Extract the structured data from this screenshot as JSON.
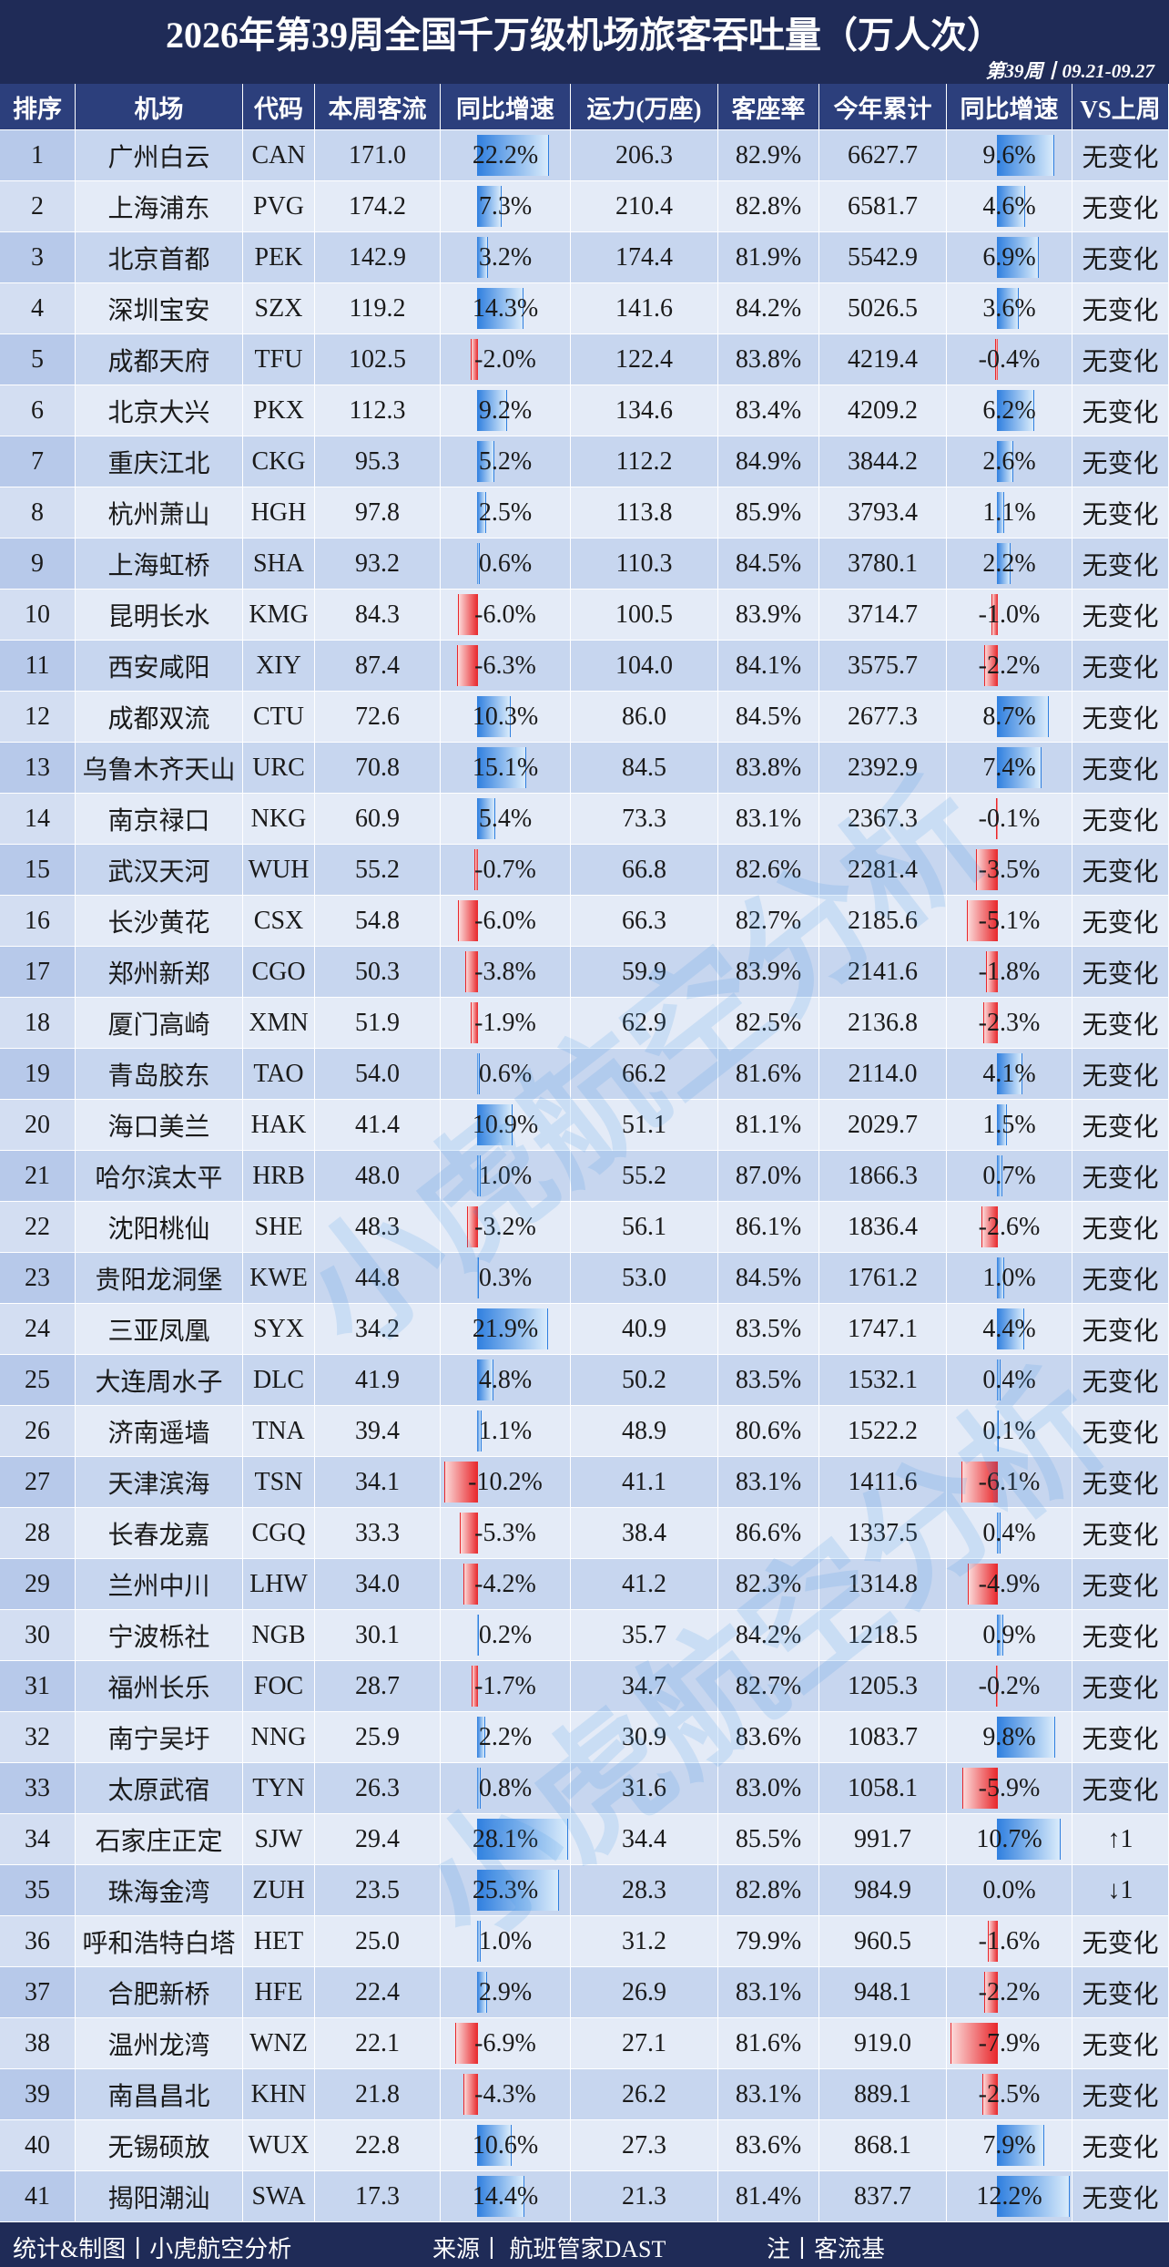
{
  "header": {
    "title": "2026年第39周全国千万级机场旅客吞吐量（万人次）",
    "subtitle": "第39周丨09.21-09.27"
  },
  "table": {
    "columns": [
      "排序",
      "机场",
      "代码",
      "本周客流",
      "同比增速",
      "运力(万座)",
      "客座率",
      "今年累计",
      "同比增速",
      "VS上周"
    ],
    "rows": [
      [
        "1",
        "广州白云",
        "CAN",
        "171.0",
        "22.2%",
        "206.3",
        "82.9%",
        "6627.7",
        "9.6%",
        "无变化"
      ],
      [
        "2",
        "上海浦东",
        "PVG",
        "174.2",
        "7.3%",
        "210.4",
        "82.8%",
        "6581.7",
        "4.6%",
        "无变化"
      ],
      [
        "3",
        "北京首都",
        "PEK",
        "142.9",
        "3.2%",
        "174.4",
        "81.9%",
        "5542.9",
        "6.9%",
        "无变化"
      ],
      [
        "4",
        "深圳宝安",
        "SZX",
        "119.2",
        "14.3%",
        "141.6",
        "84.2%",
        "5026.5",
        "3.6%",
        "无变化"
      ],
      [
        "5",
        "成都天府",
        "TFU",
        "102.5",
        "-2.0%",
        "122.4",
        "83.8%",
        "4219.4",
        "-0.4%",
        "无变化"
      ],
      [
        "6",
        "北京大兴",
        "PKX",
        "112.3",
        "9.2%",
        "134.6",
        "83.4%",
        "4209.2",
        "6.2%",
        "无变化"
      ],
      [
        "7",
        "重庆江北",
        "CKG",
        "95.3",
        "5.2%",
        "112.2",
        "84.9%",
        "3844.2",
        "2.6%",
        "无变化"
      ],
      [
        "8",
        "杭州萧山",
        "HGH",
        "97.8",
        "2.5%",
        "113.8",
        "85.9%",
        "3793.4",
        "1.1%",
        "无变化"
      ],
      [
        "9",
        "上海虹桥",
        "SHA",
        "93.2",
        "0.6%",
        "110.3",
        "84.5%",
        "3780.1",
        "2.2%",
        "无变化"
      ],
      [
        "10",
        "昆明长水",
        "KMG",
        "84.3",
        "-6.0%",
        "100.5",
        "83.9%",
        "3714.7",
        "-1.0%",
        "无变化"
      ],
      [
        "11",
        "西安咸阳",
        "XIY",
        "87.4",
        "-6.3%",
        "104.0",
        "84.1%",
        "3575.7",
        "-2.2%",
        "无变化"
      ],
      [
        "12",
        "成都双流",
        "CTU",
        "72.6",
        "10.3%",
        "86.0",
        "84.5%",
        "2677.3",
        "8.7%",
        "无变化"
      ],
      [
        "13",
        "乌鲁木齐天山",
        "URC",
        "70.8",
        "15.1%",
        "84.5",
        "83.8%",
        "2392.9",
        "7.4%",
        "无变化"
      ],
      [
        "14",
        "南京禄口",
        "NKG",
        "60.9",
        "5.4%",
        "73.3",
        "83.1%",
        "2367.3",
        "-0.1%",
        "无变化"
      ],
      [
        "15",
        "武汉天河",
        "WUH",
        "55.2",
        "-0.7%",
        "66.8",
        "82.6%",
        "2281.4",
        "-3.5%",
        "无变化"
      ],
      [
        "16",
        "长沙黄花",
        "CSX",
        "54.8",
        "-6.0%",
        "66.3",
        "82.7%",
        "2185.6",
        "-5.1%",
        "无变化"
      ],
      [
        "17",
        "郑州新郑",
        "CGO",
        "50.3",
        "-3.8%",
        "59.9",
        "83.9%",
        "2141.6",
        "-1.8%",
        "无变化"
      ],
      [
        "18",
        "厦门高崎",
        "XMN",
        "51.9",
        "-1.9%",
        "62.9",
        "82.5%",
        "2136.8",
        "-2.3%",
        "无变化"
      ],
      [
        "19",
        "青岛胶东",
        "TAO",
        "54.0",
        "0.6%",
        "66.2",
        "81.6%",
        "2114.0",
        "4.1%",
        "无变化"
      ],
      [
        "20",
        "海口美兰",
        "HAK",
        "41.4",
        "10.9%",
        "51.1",
        "81.1%",
        "2029.7",
        "1.5%",
        "无变化"
      ],
      [
        "21",
        "哈尔滨太平",
        "HRB",
        "48.0",
        "1.0%",
        "55.2",
        "87.0%",
        "1866.3",
        "0.7%",
        "无变化"
      ],
      [
        "22",
        "沈阳桃仙",
        "SHE",
        "48.3",
        "-3.2%",
        "56.1",
        "86.1%",
        "1836.4",
        "-2.6%",
        "无变化"
      ],
      [
        "23",
        "贵阳龙洞堡",
        "KWE",
        "44.8",
        "0.3%",
        "53.0",
        "84.5%",
        "1761.2",
        "1.0%",
        "无变化"
      ],
      [
        "24",
        "三亚凤凰",
        "SYX",
        "34.2",
        "21.9%",
        "40.9",
        "83.5%",
        "1747.1",
        "4.4%",
        "无变化"
      ],
      [
        "25",
        "大连周水子",
        "DLC",
        "41.9",
        "4.8%",
        "50.2",
        "83.5%",
        "1532.1",
        "0.4%",
        "无变化"
      ],
      [
        "26",
        "济南遥墙",
        "TNA",
        "39.4",
        "1.1%",
        "48.9",
        "80.6%",
        "1522.2",
        "0.1%",
        "无变化"
      ],
      [
        "27",
        "天津滨海",
        "TSN",
        "34.1",
        "-10.2%",
        "41.1",
        "83.1%",
        "1411.6",
        "-6.1%",
        "无变化"
      ],
      [
        "28",
        "长春龙嘉",
        "CGQ",
        "33.3",
        "-5.3%",
        "38.4",
        "86.6%",
        "1337.5",
        "0.4%",
        "无变化"
      ],
      [
        "29",
        "兰州中川",
        "LHW",
        "34.0",
        "-4.2%",
        "41.2",
        "82.3%",
        "1314.8",
        "-4.9%",
        "无变化"
      ],
      [
        "30",
        "宁波栎社",
        "NGB",
        "30.1",
        "0.2%",
        "35.7",
        "84.2%",
        "1218.5",
        "0.9%",
        "无变化"
      ],
      [
        "31",
        "福州长乐",
        "FOC",
        "28.7",
        "-1.7%",
        "34.7",
        "82.7%",
        "1205.3",
        "-0.2%",
        "无变化"
      ],
      [
        "32",
        "南宁吴圩",
        "NNG",
        "25.9",
        "2.2%",
        "30.9",
        "83.6%",
        "1083.7",
        "9.8%",
        "无变化"
      ],
      [
        "33",
        "太原武宿",
        "TYN",
        "26.3",
        "0.8%",
        "31.6",
        "83.0%",
        "1058.1",
        "-5.9%",
        "无变化"
      ],
      [
        "34",
        "石家庄正定",
        "SJW",
        "29.4",
        "28.1%",
        "34.4",
        "85.5%",
        "991.7",
        "10.7%",
        "↑1"
      ],
      [
        "35",
        "珠海金湾",
        "ZUH",
        "23.5",
        "25.3%",
        "28.3",
        "82.8%",
        "984.9",
        "0.0%",
        "↓1"
      ],
      [
        "36",
        "呼和浩特白塔",
        "HET",
        "25.0",
        "1.0%",
        "31.2",
        "79.9%",
        "960.5",
        "-1.6%",
        "无变化"
      ],
      [
        "37",
        "合肥新桥",
        "HFE",
        "22.4",
        "2.9%",
        "26.9",
        "83.1%",
        "948.1",
        "-2.2%",
        "无变化"
      ],
      [
        "38",
        "温州龙湾",
        "WNZ",
        "22.1",
        "-6.9%",
        "27.1",
        "81.6%",
        "919.0",
        "-7.9%",
        "无变化"
      ],
      [
        "39",
        "南昌昌北",
        "KHN",
        "21.8",
        "-4.3%",
        "26.2",
        "83.1%",
        "889.1",
        "-2.5%",
        "无变化"
      ],
      [
        "40",
        "无锡硕放",
        "WUX",
        "22.8",
        "10.6%",
        "27.3",
        "83.6%",
        "868.1",
        "7.9%",
        "无变化"
      ],
      [
        "41",
        "揭阳潮汕",
        "SWA",
        "17.3",
        "14.4%",
        "21.3",
        "81.4%",
        "837.7",
        "12.2%",
        "无变化"
      ]
    ]
  },
  "footer": {
    "left": "统计&制图丨小虎航空分析",
    "middle": "来源丨 航班管家DAST",
    "right": "注丨客流基"
  },
  "watermark": "小虎航空分析"
}
